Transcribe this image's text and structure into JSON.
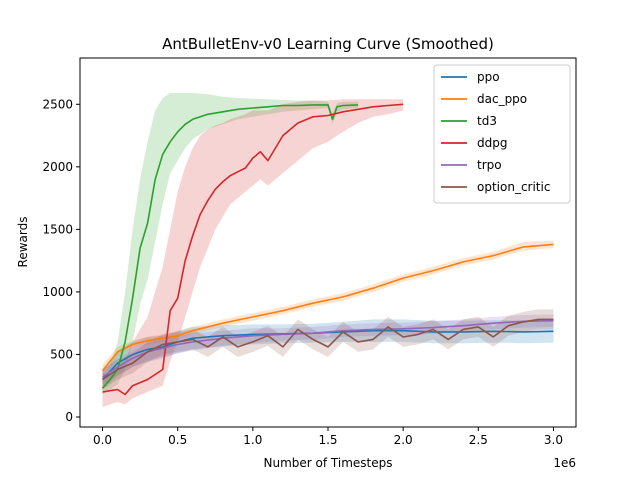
{
  "chart_data": {
    "type": "line",
    "title": "AntBulletEnv-v0 Learning Curve (Smoothed)",
    "xlabel": "Number of Timesteps",
    "ylabel": "Rewards",
    "x_scale_label": "1e6",
    "xlim": [
      -0.15,
      3.15
    ],
    "ylim": [
      -80,
      2870
    ],
    "x_ticks": [
      0.0,
      0.5,
      1.0,
      1.5,
      2.0,
      2.5,
      3.0
    ],
    "x_tick_labels": [
      "0.0",
      "0.5",
      "1.0",
      "1.5",
      "2.0",
      "2.5",
      "3.0"
    ],
    "y_ticks": [
      0,
      500,
      1000,
      1500,
      2000,
      2500
    ],
    "y_tick_labels": [
      "0",
      "500",
      "1000",
      "1500",
      "2000",
      "2500"
    ],
    "grid": false,
    "legend_position": "top-right",
    "series": [
      {
        "name": "ppo",
        "color": "#1f77b4",
        "x": [
          0.0,
          0.1,
          0.2,
          0.3,
          0.4,
          0.5,
          0.6,
          0.7,
          0.8,
          0.9,
          1.0,
          1.2,
          1.4,
          1.6,
          1.8,
          2.0,
          2.2,
          2.4,
          2.6,
          2.8,
          3.0
        ],
        "y": [
          300,
          430,
          500,
          540,
          560,
          600,
          630,
          640,
          650,
          655,
          660,
          665,
          670,
          680,
          690,
          690,
          680,
          680,
          685,
          680,
          685
        ],
        "lower": [
          220,
          330,
          400,
          440,
          470,
          510,
          540,
          555,
          565,
          575,
          580,
          590,
          595,
          600,
          600,
          600,
          590,
          590,
          595,
          590,
          595
        ],
        "upper": [
          380,
          530,
          600,
          640,
          650,
          690,
          720,
          725,
          735,
          735,
          740,
          740,
          745,
          760,
          780,
          780,
          770,
          770,
          775,
          770,
          775
        ]
      },
      {
        "name": "dac_ppo",
        "color": "#ff7f0e",
        "x": [
          0.0,
          0.1,
          0.2,
          0.3,
          0.4,
          0.5,
          0.6,
          0.8,
          1.0,
          1.2,
          1.4,
          1.6,
          1.8,
          2.0,
          2.2,
          2.4,
          2.6,
          2.8,
          3.0
        ],
        "y": [
          370,
          520,
          580,
          610,
          630,
          650,
          690,
          750,
          800,
          850,
          910,
          960,
          1030,
          1110,
          1170,
          1240,
          1290,
          1360,
          1380
        ],
        "lower": [
          320,
          480,
          550,
          580,
          600,
          620,
          660,
          720,
          770,
          820,
          880,
          930,
          1000,
          1080,
          1140,
          1210,
          1260,
          1330,
          1350
        ],
        "upper": [
          420,
          560,
          610,
          640,
          660,
          680,
          720,
          780,
          830,
          880,
          940,
          990,
          1060,
          1140,
          1200,
          1270,
          1320,
          1400,
          1410
        ]
      },
      {
        "name": "td3",
        "color": "#2ca02c",
        "x": [
          0.0,
          0.05,
          0.1,
          0.15,
          0.2,
          0.25,
          0.3,
          0.35,
          0.4,
          0.45,
          0.5,
          0.55,
          0.6,
          0.7,
          0.8,
          0.9,
          1.0,
          1.1,
          1.2,
          1.3,
          1.4,
          1.5,
          1.53,
          1.56,
          1.6,
          1.7
        ],
        "y": [
          230,
          300,
          380,
          600,
          950,
          1350,
          1550,
          1900,
          2100,
          2200,
          2280,
          2340,
          2380,
          2420,
          2440,
          2460,
          2470,
          2480,
          2490,
          2490,
          2495,
          2495,
          2380,
          2480,
          2490,
          2495
        ],
        "lower": [
          180,
          220,
          260,
          380,
          600,
          900,
          1100,
          1400,
          1700,
          1950,
          2050,
          2150,
          2220,
          2300,
          2340,
          2380,
          2400,
          2420,
          2440,
          2450,
          2460,
          2470,
          2340,
          2440,
          2460,
          2470
        ],
        "upper": [
          300,
          420,
          600,
          1000,
          1500,
          1900,
          2200,
          2450,
          2550,
          2590,
          2590,
          2590,
          2590,
          2580,
          2560,
          2550,
          2545,
          2540,
          2535,
          2530,
          2530,
          2520,
          2420,
          2510,
          2520,
          2520
        ]
      },
      {
        "name": "ddpg",
        "color": "#d62728",
        "x": [
          0.0,
          0.05,
          0.1,
          0.15,
          0.2,
          0.3,
          0.4,
          0.45,
          0.5,
          0.55,
          0.6,
          0.65,
          0.7,
          0.75,
          0.8,
          0.85,
          0.9,
          0.95,
          1.0,
          1.05,
          1.1,
          1.2,
          1.3,
          1.4,
          1.5,
          1.6,
          1.7,
          1.8,
          1.9,
          2.0
        ],
        "y": [
          200,
          210,
          220,
          180,
          250,
          300,
          380,
          850,
          950,
          1250,
          1450,
          1620,
          1730,
          1820,
          1880,
          1930,
          1960,
          1990,
          2070,
          2120,
          2050,
          2250,
          2350,
          2400,
          2410,
          2440,
          2460,
          2480,
          2490,
          2500
        ],
        "lower": [
          80,
          100,
          120,
          100,
          150,
          200,
          250,
          450,
          600,
          800,
          1000,
          1200,
          1350,
          1500,
          1600,
          1700,
          1750,
          1800,
          1850,
          1900,
          1850,
          1950,
          2050,
          2150,
          2200,
          2280,
          2350,
          2400,
          2420,
          2450
        ],
        "upper": [
          350,
          350,
          400,
          450,
          600,
          800,
          1200,
          1500,
          1800,
          2000,
          2150,
          2250,
          2300,
          2330,
          2350,
          2380,
          2400,
          2420,
          2450,
          2450,
          2450,
          2500,
          2520,
          2530,
          2530,
          2540,
          2540,
          2540,
          2540,
          2540
        ]
      },
      {
        "name": "trpo",
        "color": "#9467bd",
        "x": [
          0.0,
          0.1,
          0.2,
          0.3,
          0.4,
          0.5,
          0.6,
          0.8,
          1.0,
          1.2,
          1.4,
          1.6,
          1.8,
          2.0,
          2.2,
          2.4,
          2.6,
          2.8,
          3.0
        ],
        "y": [
          320,
          400,
          470,
          520,
          550,
          580,
          600,
          630,
          650,
          660,
          670,
          690,
          700,
          705,
          715,
          730,
          750,
          765,
          770
        ],
        "lower": [
          260,
          330,
          400,
          450,
          480,
          510,
          530,
          570,
          590,
          610,
          620,
          640,
          650,
          655,
          665,
          680,
          700,
          715,
          720
        ],
        "upper": [
          380,
          470,
          540,
          590,
          620,
          650,
          670,
          690,
          710,
          710,
          720,
          740,
          750,
          755,
          765,
          780,
          800,
          815,
          820
        ]
      },
      {
        "name": "option_critic",
        "color": "#8c564b",
        "x": [
          0.0,
          0.1,
          0.2,
          0.3,
          0.4,
          0.5,
          0.6,
          0.7,
          0.8,
          0.9,
          1.0,
          1.1,
          1.2,
          1.3,
          1.4,
          1.5,
          1.6,
          1.7,
          1.8,
          1.9,
          2.0,
          2.1,
          2.2,
          2.3,
          2.4,
          2.5,
          2.6,
          2.7,
          2.8,
          2.9,
          3.0
        ],
        "y": [
          300,
          380,
          430,
          520,
          580,
          600,
          620,
          560,
          640,
          560,
          600,
          650,
          560,
          700,
          620,
          560,
          680,
          600,
          620,
          720,
          640,
          660,
          700,
          620,
          700,
          720,
          640,
          730,
          760,
          780,
          780
        ],
        "lower": [
          220,
          300,
          350,
          440,
          500,
          520,
          540,
          480,
          560,
          480,
          520,
          570,
          480,
          620,
          540,
          480,
          600,
          520,
          540,
          640,
          560,
          580,
          620,
          540,
          620,
          640,
          560,
          650,
          680,
          700,
          700
        ],
        "upper": [
          380,
          460,
          510,
          600,
          660,
          680,
          700,
          640,
          720,
          640,
          680,
          730,
          640,
          780,
          700,
          640,
          760,
          680,
          700,
          800,
          720,
          740,
          780,
          700,
          780,
          800,
          720,
          810,
          840,
          860,
          860
        ]
      }
    ]
  }
}
